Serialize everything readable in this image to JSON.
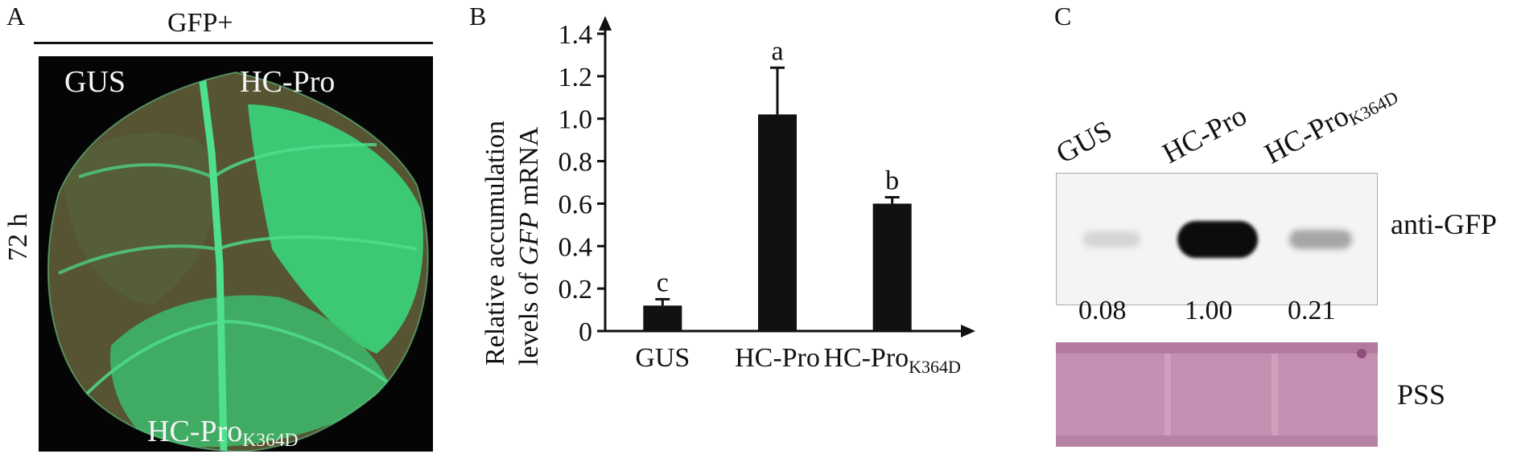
{
  "panels": {
    "a": "A",
    "b": "B",
    "c": "C"
  },
  "panelA": {
    "header": "GFP+",
    "time_label": "72 h",
    "labels": {
      "gus": "GUS",
      "hcpro": "HC-Pro",
      "mutant_base": "HC-Pro",
      "mutant_sub": "K364D"
    },
    "colors": {
      "leaf": "#3f5a32",
      "gfp": "#3bd37a",
      "vein": "#4fe08e",
      "background": "#050505"
    }
  },
  "chart_data": {
    "type": "bar",
    "categories": [
      "GUS",
      "HC-Pro",
      "HC-ProK364D"
    ],
    "category_labels": [
      {
        "base": "GUS",
        "sub": ""
      },
      {
        "base": "HC-Pro",
        "sub": ""
      },
      {
        "base": "HC-Pro",
        "sub": "K364D"
      }
    ],
    "values": [
      0.12,
      1.02,
      0.6
    ],
    "errors": [
      0.03,
      0.22,
      0.03
    ],
    "significance": [
      "c",
      "a",
      "b"
    ],
    "ylabel_line1": "Relative accumulation",
    "ylabel_line2_pre": "levels of ",
    "ylabel_line2_italic": "GFP",
    "ylabel_line2_post": " mRNA",
    "ylim": [
      0,
      1.4
    ],
    "yticks": [
      "0",
      "0.2",
      "0.4",
      "0.6",
      "0.8",
      "1.0",
      "1.2",
      "1.4"
    ],
    "ytick_values": [
      0,
      0.2,
      0.4,
      0.6,
      0.8,
      1.0,
      1.2,
      1.4
    ],
    "bar_color": "#111111",
    "grid": false
  },
  "panelC": {
    "lanes": [
      {
        "base": "GUS",
        "sub": ""
      },
      {
        "base": "HC-Pro",
        "sub": ""
      },
      {
        "base": "HC-Pro",
        "sub": "K364D"
      }
    ],
    "blot_label": "anti-GFP",
    "quantification": [
      "0.08",
      "1.00",
      "0.21"
    ],
    "band_intensities": [
      0.08,
      1.0,
      0.21
    ],
    "stain_label": "PSS",
    "colors": {
      "band": "#0c0c0c",
      "stain": "#c896b4"
    }
  }
}
